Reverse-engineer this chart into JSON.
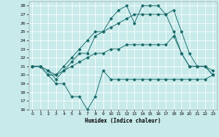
{
  "title": "",
  "xlabel": "Humidex (Indice chaleur)",
  "bg_color": "#c8eaea",
  "grid_color": "#ffffff",
  "line_color": "#1a6b6b",
  "xlim": [
    -0.5,
    23.5
  ],
  "ylim": [
    16,
    28.5
  ],
  "xticks": [
    0,
    1,
    2,
    3,
    4,
    5,
    6,
    7,
    8,
    9,
    10,
    11,
    12,
    13,
    14,
    15,
    16,
    17,
    18,
    19,
    20,
    21,
    22,
    23
  ],
  "yticks": [
    16,
    17,
    18,
    19,
    20,
    21,
    22,
    23,
    24,
    25,
    26,
    27,
    28
  ],
  "line1_x": [
    0,
    1,
    2,
    3,
    4,
    5,
    6,
    7,
    8,
    9,
    10,
    11,
    12,
    13,
    14,
    15,
    16,
    17,
    18,
    19,
    20,
    21,
    22,
    23
  ],
  "line1_y": [
    21.0,
    21.0,
    20.0,
    19.0,
    19.0,
    17.5,
    17.5,
    16.0,
    17.5,
    20.5,
    19.5,
    19.5,
    19.5,
    19.5,
    19.5,
    19.5,
    19.5,
    19.5,
    19.5,
    19.5,
    19.5,
    19.5,
    19.5,
    20.0
  ],
  "line2_x": [
    0,
    1,
    2,
    3,
    4,
    5,
    6,
    7,
    8,
    9,
    10,
    11,
    12,
    13,
    14,
    15,
    16,
    17,
    18,
    19,
    20,
    21,
    22,
    23
  ],
  "line2_y": [
    21.0,
    21.0,
    20.0,
    20.0,
    21.0,
    22.0,
    23.0,
    24.0,
    25.0,
    25.0,
    25.5,
    26.0,
    26.5,
    27.0,
    27.0,
    27.0,
    27.0,
    27.0,
    25.0,
    22.5,
    21.0,
    21.0,
    21.0,
    20.0
  ],
  "line3_x": [
    0,
    1,
    2,
    3,
    4,
    5,
    6,
    7,
    8,
    9,
    10,
    11,
    12,
    13,
    14,
    15,
    16,
    17,
    18,
    19,
    20,
    21,
    22,
    23
  ],
  "line3_y": [
    21.0,
    21.0,
    20.5,
    20.0,
    20.5,
    21.0,
    21.5,
    22.0,
    22.5,
    22.5,
    23.0,
    23.0,
    23.5,
    23.5,
    23.5,
    23.5,
    23.5,
    23.5,
    24.5,
    22.5,
    21.0,
    21.0,
    21.0,
    20.5
  ],
  "line4_x": [
    0,
    1,
    2,
    3,
    4,
    5,
    6,
    7,
    8,
    9,
    10,
    11,
    12,
    13,
    14,
    15,
    16,
    17,
    18,
    19,
    20,
    21,
    22,
    23
  ],
  "line4_y": [
    21.0,
    21.0,
    20.5,
    19.5,
    20.5,
    21.5,
    22.5,
    22.5,
    24.5,
    25.0,
    26.5,
    27.5,
    28.0,
    26.0,
    28.0,
    28.0,
    28.0,
    27.0,
    27.5,
    25.0,
    22.5,
    21.0,
    21.0,
    20.0
  ]
}
